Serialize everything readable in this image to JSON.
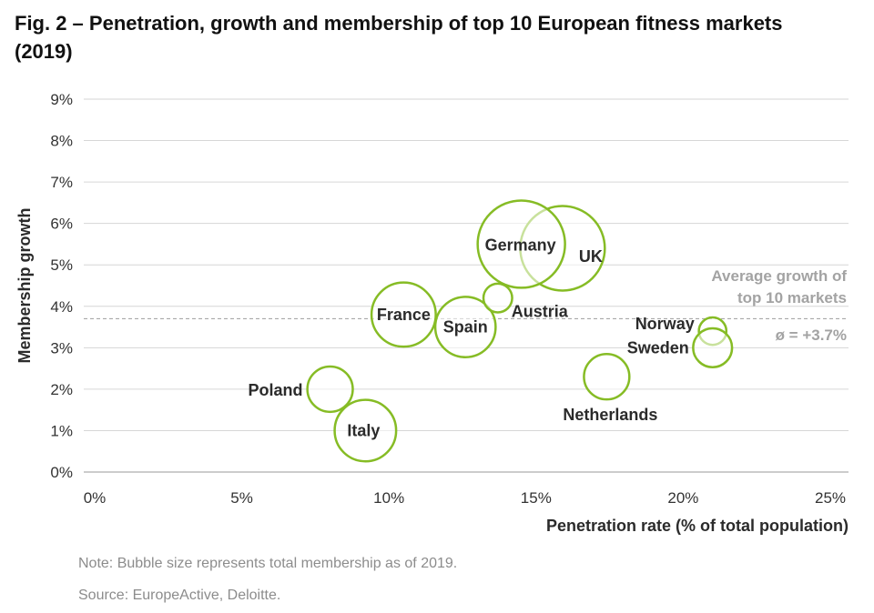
{
  "figure": {
    "title": "Fig. 2 – Penetration, growth and membership of top 10 European fitness markets (2019)",
    "note": "Note: Bubble size represents total membership as of 2019.",
    "source": "Source: EuropeActive, Deloitte."
  },
  "chart_data": {
    "type": "scatter",
    "bubble": true,
    "xlabel": "Penetration rate (% of total population)",
    "ylabel": "Membership growth",
    "xlim": [
      0,
      25
    ],
    "ylim": [
      0,
      9
    ],
    "x_ticks": [
      "0%",
      "5%",
      "10%",
      "15%",
      "20%",
      "25%"
    ],
    "y_ticks": [
      "0%",
      "1%",
      "2%",
      "3%",
      "4%",
      "5%",
      "6%",
      "7%",
      "8%",
      "9%"
    ],
    "grid": true,
    "average": {
      "value": 3.7,
      "label_lines": [
        "Average growth of",
        "top 10 markets"
      ],
      "value_label": "ø = +3.7%"
    },
    "bubble_color": "#86bc25",
    "points": [
      {
        "name": "Germany",
        "x": 14.5,
        "y": 5.5,
        "size": 11.1
      },
      {
        "name": "UK",
        "x": 15.9,
        "y": 5.4,
        "size": 10.4
      },
      {
        "name": "France",
        "x": 10.5,
        "y": 3.8,
        "size": 6.0
      },
      {
        "name": "Spain",
        "x": 12.6,
        "y": 3.5,
        "size": 5.3
      },
      {
        "name": "Austria",
        "x": 13.7,
        "y": 4.2,
        "size": 1.2
      },
      {
        "name": "Italy",
        "x": 9.2,
        "y": 1.0,
        "size": 5.5
      },
      {
        "name": "Poland",
        "x": 8.0,
        "y": 2.0,
        "size": 3.0
      },
      {
        "name": "Netherlands",
        "x": 17.4,
        "y": 2.3,
        "size": 3.0
      },
      {
        "name": "Norway",
        "x": 21.0,
        "y": 3.4,
        "size": 1.1
      },
      {
        "name": "Sweden",
        "x": 21.0,
        "y": 3.0,
        "size": 2.2
      }
    ]
  }
}
